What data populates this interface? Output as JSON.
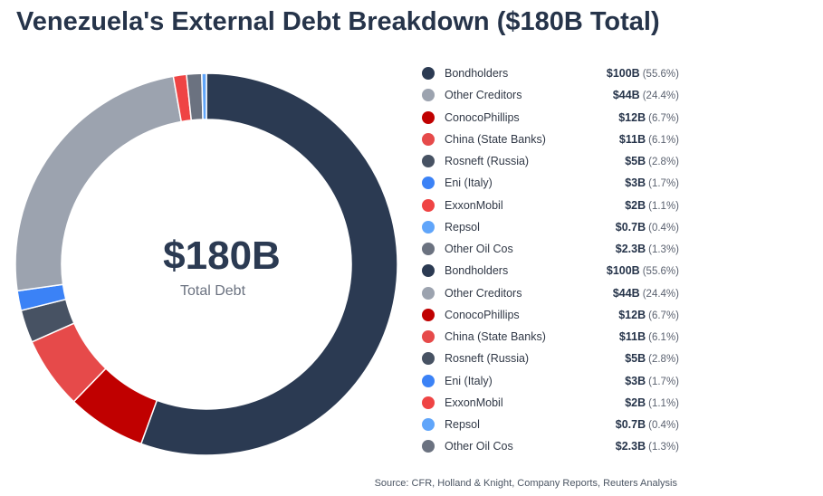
{
  "title": "Venezuela's External Debt Breakdown ($180B Total)",
  "center": {
    "value": "$180B",
    "label": "Total Debt"
  },
  "source": "Source: CFR, Holland & Knight, Company Reports, Reuters Analysis",
  "legend": [
    {
      "name": "Bondholders",
      "amount": "$100B",
      "pct": "(55.6%)",
      "color": "#2b3a52"
    },
    {
      "name": "Other Creditors",
      "amount": "$44B",
      "pct": "(24.4%)",
      "color": "#9ca3af"
    },
    {
      "name": "ConocoPhillips",
      "amount": "$12B",
      "pct": "(6.7%)",
      "color": "#c00000"
    },
    {
      "name": "China (State Banks)",
      "amount": "$11B",
      "pct": "(6.1%)",
      "color": "#e64a4a"
    },
    {
      "name": "Rosneft (Russia)",
      "amount": "$5B",
      "pct": "(2.8%)",
      "color": "#475263"
    },
    {
      "name": "Eni (Italy)",
      "amount": "$3B",
      "pct": "(1.7%)",
      "color": "#3b82f6"
    },
    {
      "name": "ExxonMobil",
      "amount": "$2B",
      "pct": "(1.1%)",
      "color": "#ef4444"
    },
    {
      "name": "Repsol",
      "amount": "$0.7B",
      "pct": "(0.4%)",
      "color": "#60a5fa"
    },
    {
      "name": "Other Oil Cos",
      "amount": "$2.3B",
      "pct": "(1.3%)",
      "color": "#6b7280"
    },
    {
      "name": "Bondholders",
      "amount": "$100B",
      "pct": "(55.6%)",
      "color": "#2b3a52"
    },
    {
      "name": "Other Creditors",
      "amount": "$44B",
      "pct": "(24.4%)",
      "color": "#9ca3af"
    },
    {
      "name": "ConocoPhillips",
      "amount": "$12B",
      "pct": "(6.7%)",
      "color": "#c00000"
    },
    {
      "name": "China (State Banks)",
      "amount": "$11B",
      "pct": "(6.1%)",
      "color": "#e64a4a"
    },
    {
      "name": "Rosneft (Russia)",
      "amount": "$5B",
      "pct": "(2.8%)",
      "color": "#475263"
    },
    {
      "name": "Eni (Italy)",
      "amount": "$3B",
      "pct": "(1.7%)",
      "color": "#3b82f6"
    },
    {
      "name": "ExxonMobil",
      "amount": "$2B",
      "pct": "(1.1%)",
      "color": "#ef4444"
    },
    {
      "name": "Repsol",
      "amount": "$0.7B",
      "pct": "(0.4%)",
      "color": "#60a5fa"
    },
    {
      "name": "Other Oil Cos",
      "amount": "$2.3B",
      "pct": "(1.3%)",
      "color": "#6b7280"
    }
  ],
  "chart_data": {
    "type": "pie",
    "categories": [
      "Bondholders",
      "ConocoPhillips",
      "China (State Banks)",
      "Rosneft (Russia)",
      "Eni (Italy)",
      "Other Creditors",
      "ExxonMobil",
      "Other Oil Cos",
      "Repsol"
    ],
    "values": [
      100,
      12,
      11,
      5,
      3,
      44,
      2,
      2.3,
      0.7
    ],
    "colors": [
      "#2b3a52",
      "#c00000",
      "#e64a4a",
      "#475263",
      "#3b82f6",
      "#9ca3af",
      "#ef4444",
      "#6b7280",
      "#60a5fa"
    ],
    "title": "Venezuela's External Debt Breakdown ($180B Total)",
    "donut": true,
    "legend_position": "right"
  }
}
